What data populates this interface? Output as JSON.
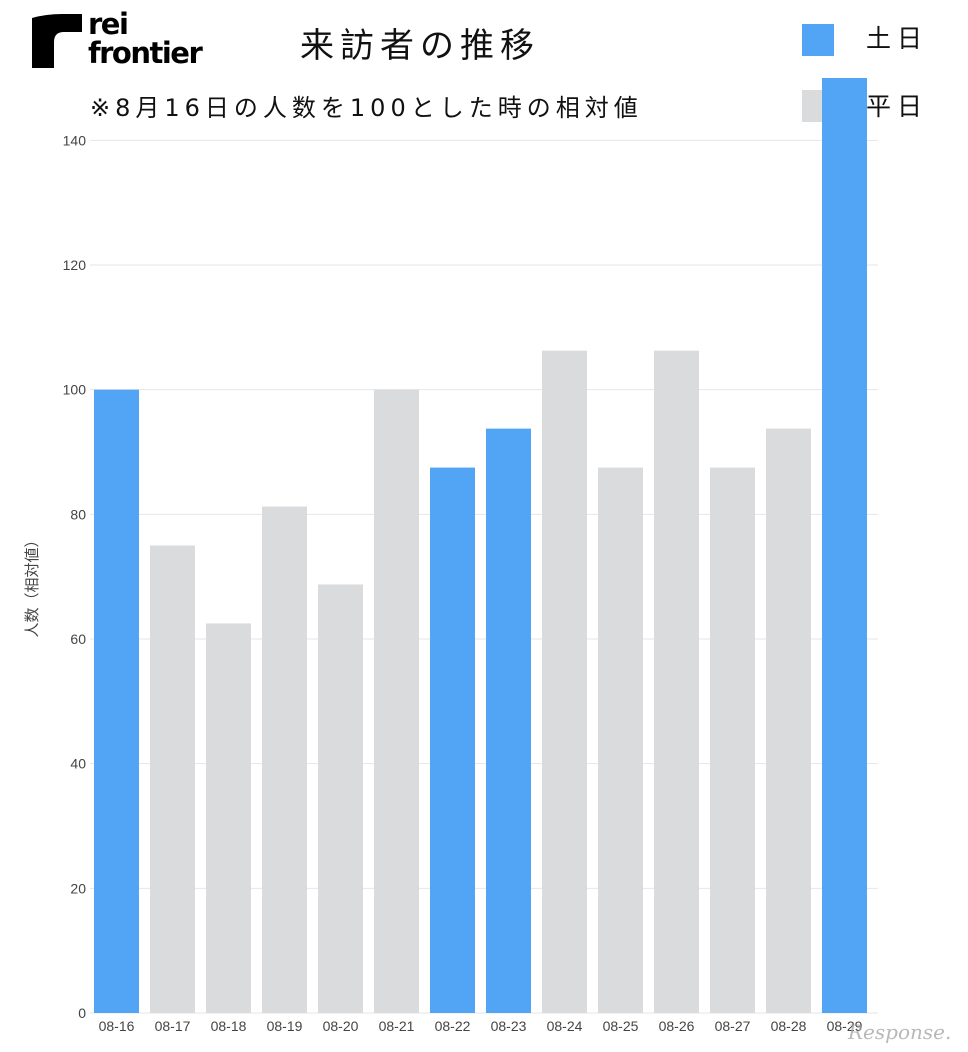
{
  "brand": {
    "line1": "rei",
    "line2": "frontier"
  },
  "watermark": "Response.",
  "colors": {
    "weekend": "#52a4f5",
    "weekday": "#d9dbdc",
    "grid": "#e6e6e6",
    "text": "#444444"
  },
  "chart_data": {
    "type": "bar",
    "title": "来訪者の推移",
    "subtitle": "※8月16日の人数を100とした時の相対値",
    "xlabel": "",
    "ylabel": "人数（相対値）",
    "ylim": [
      0,
      150
    ],
    "yticks": [
      0,
      20,
      40,
      60,
      80,
      100,
      120,
      140
    ],
    "grid": true,
    "legend_position": "top-right",
    "legend": [
      {
        "key": "weekend",
        "label": "土日",
        "color": "#52a4f5"
      },
      {
        "key": "weekday",
        "label": "平日",
        "color": "#d9dbdc"
      }
    ],
    "categories": [
      "08-16",
      "08-17",
      "08-18",
      "08-19",
      "08-20",
      "08-21",
      "08-22",
      "08-23",
      "08-24",
      "08-25",
      "08-26",
      "08-27",
      "08-28",
      "08-29"
    ],
    "values": [
      100,
      75,
      62.5,
      81.25,
      68.75,
      100,
      87.5,
      93.75,
      106.25,
      87.5,
      106.25,
      87.5,
      93.75,
      150
    ],
    "groups": [
      "weekend",
      "weekday",
      "weekday",
      "weekday",
      "weekday",
      "weekday",
      "weekend",
      "weekend",
      "weekday",
      "weekday",
      "weekday",
      "weekday",
      "weekday",
      "weekend"
    ]
  }
}
